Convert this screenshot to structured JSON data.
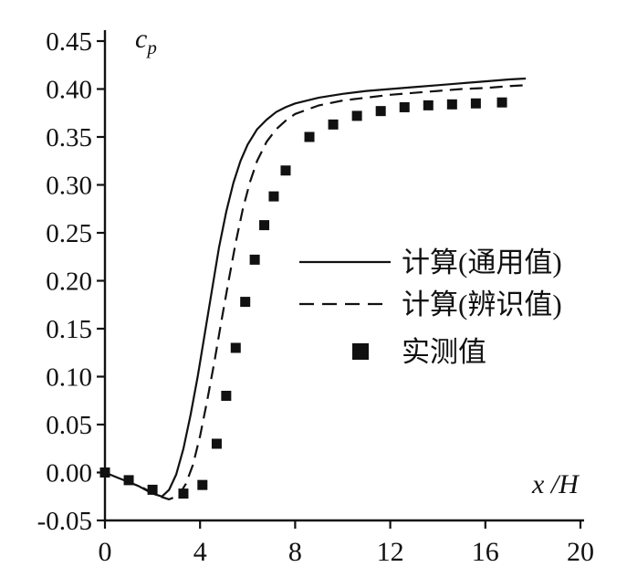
{
  "chart_data": {
    "type": "line",
    "title": "",
    "xlabel": "x /H",
    "ylabel": "c_p",
    "xlim": [
      0,
      20
    ],
    "ylim": [
      -0.05,
      0.45
    ],
    "xticks": [
      0,
      4,
      8,
      12,
      16,
      20
    ],
    "yticks": [
      -0.05,
      0.0,
      0.05,
      0.1,
      0.15,
      0.2,
      0.25,
      0.3,
      0.35,
      0.4,
      0.45
    ],
    "grid": false,
    "legend_position": "middle-right",
    "series": [
      {
        "name": "计算(通用值)",
        "style": "solid",
        "color": "#111111",
        "points": [
          [
            0,
            0.0
          ],
          [
            0.7,
            -0.007
          ],
          [
            1.4,
            -0.014
          ],
          [
            2.0,
            -0.022
          ],
          [
            2.4,
            -0.025
          ],
          [
            2.7,
            -0.018
          ],
          [
            3.0,
            -0.002
          ],
          [
            3.3,
            0.025
          ],
          [
            3.6,
            0.06
          ],
          [
            3.9,
            0.1
          ],
          [
            4.2,
            0.145
          ],
          [
            4.5,
            0.19
          ],
          [
            4.8,
            0.235
          ],
          [
            5.1,
            0.272
          ],
          [
            5.4,
            0.302
          ],
          [
            5.7,
            0.325
          ],
          [
            6.0,
            0.342
          ],
          [
            6.4,
            0.358
          ],
          [
            6.8,
            0.368
          ],
          [
            7.2,
            0.376
          ],
          [
            7.6,
            0.381
          ],
          [
            8.0,
            0.385
          ],
          [
            9.0,
            0.391
          ],
          [
            10.0,
            0.395
          ],
          [
            11.0,
            0.398
          ],
          [
            12.0,
            0.4
          ],
          [
            13.0,
            0.402
          ],
          [
            14.0,
            0.404
          ],
          [
            15.0,
            0.406
          ],
          [
            16.0,
            0.408
          ],
          [
            17.0,
            0.41
          ],
          [
            17.7,
            0.411
          ]
        ]
      },
      {
        "name": "计算(辨识值)",
        "style": "dashed",
        "color": "#111111",
        "points": [
          [
            1.6,
            -0.016
          ],
          [
            2.2,
            -0.024
          ],
          [
            2.7,
            -0.028
          ],
          [
            3.1,
            -0.024
          ],
          [
            3.4,
            -0.012
          ],
          [
            3.7,
            0.008
          ],
          [
            4.0,
            0.038
          ],
          [
            4.3,
            0.075
          ],
          [
            4.6,
            0.115
          ],
          [
            4.9,
            0.158
          ],
          [
            5.2,
            0.2
          ],
          [
            5.5,
            0.24
          ],
          [
            5.8,
            0.275
          ],
          [
            6.1,
            0.303
          ],
          [
            6.4,
            0.325
          ],
          [
            6.8,
            0.345
          ],
          [
            7.2,
            0.358
          ],
          [
            7.6,
            0.367
          ],
          [
            8.0,
            0.374
          ],
          [
            9.0,
            0.383
          ],
          [
            10.0,
            0.388
          ],
          [
            11.0,
            0.391
          ],
          [
            12.0,
            0.394
          ],
          [
            13.0,
            0.396
          ],
          [
            14.0,
            0.398
          ],
          [
            15.0,
            0.4
          ],
          [
            16.0,
            0.401
          ],
          [
            17.0,
            0.403
          ],
          [
            17.7,
            0.404
          ]
        ]
      },
      {
        "name": "实测值",
        "style": "square-markers",
        "color": "#111111",
        "points": [
          [
            0,
            0.0
          ],
          [
            1.0,
            -0.008
          ],
          [
            2.0,
            -0.018
          ],
          [
            3.3,
            -0.022
          ],
          [
            4.1,
            -0.013
          ],
          [
            4.7,
            0.03
          ],
          [
            5.1,
            0.08
          ],
          [
            5.5,
            0.13
          ],
          [
            5.9,
            0.178
          ],
          [
            6.3,
            0.222
          ],
          [
            6.7,
            0.258
          ],
          [
            7.1,
            0.288
          ],
          [
            7.6,
            0.315
          ],
          [
            8.6,
            0.35
          ],
          [
            9.6,
            0.363
          ],
          [
            10.6,
            0.372
          ],
          [
            11.6,
            0.377
          ],
          [
            12.6,
            0.381
          ],
          [
            13.6,
            0.383
          ],
          [
            14.6,
            0.384
          ],
          [
            15.6,
            0.385
          ],
          [
            16.7,
            0.386
          ]
        ]
      }
    ]
  }
}
